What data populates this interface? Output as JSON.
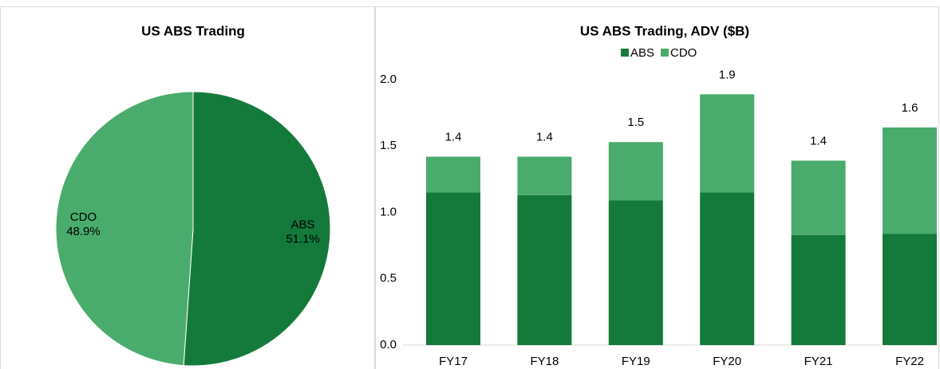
{
  "chart_data": [
    {
      "type": "pie",
      "title": "US ABS Trading",
      "categories": [
        "ABS",
        "CDO"
      ],
      "values": [
        51.1,
        48.9
      ],
      "value_labels": [
        "51.1%",
        "48.9%"
      ],
      "colors": [
        "#147a3c",
        "#4aac6c"
      ]
    },
    {
      "type": "bar",
      "title": "US ABS Trading, ADV ($B)",
      "stacked": true,
      "categories": [
        "FY17",
        "FY18",
        "FY19",
        "FY20",
        "FY21",
        "FY22"
      ],
      "series": [
        {
          "name": "ABS",
          "color": "#147a3c",
          "values": [
            1.15,
            1.13,
            1.09,
            1.15,
            0.83,
            0.84
          ]
        },
        {
          "name": "CDO",
          "color": "#4aac6c",
          "values": [
            0.27,
            0.29,
            0.44,
            0.74,
            0.56,
            0.8
          ]
        }
      ],
      "total_labels": [
        "1.4",
        "1.4",
        "1.5",
        "1.9",
        "1.4",
        "1.6"
      ],
      "ylim": [
        0,
        2
      ],
      "yticks": [
        {
          "value": 0,
          "label": "0.0"
        },
        {
          "value": 0.5,
          "label": "0.5"
        },
        {
          "value": 1,
          "label": "1.0"
        },
        {
          "value": 1.5,
          "label": "1.5"
        },
        {
          "value": 2,
          "label": "2.0"
        }
      ],
      "legend": "top"
    }
  ]
}
